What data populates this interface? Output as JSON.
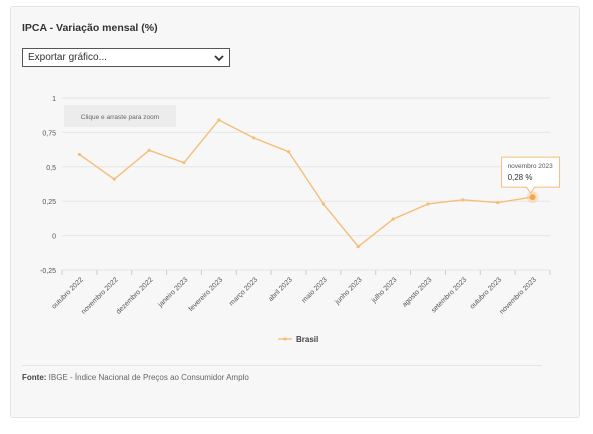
{
  "header": {
    "title": "IPCA - Variação mensal (%)"
  },
  "export": {
    "label": "Exportar gráfico..."
  },
  "zoom_hint": "Clique e arraste para zoom",
  "tooltip": {
    "month": "novembro 2023",
    "value": "0,28 %"
  },
  "source": {
    "label": "Fonte:",
    "text": "IBGE - Índice Nacional de Preços ao Consumidor Amplo"
  },
  "colors": {
    "line": "#f5be78",
    "marker": "#f0a94e",
    "grid": "#e6e6e6",
    "text": "#555555"
  },
  "chart_data": {
    "type": "line",
    "title": "IPCA - Variação mensal (%)",
    "categories": [
      "outubro 2022",
      "novembro 2022",
      "dezembro 2022",
      "janeiro 2023",
      "fevereiro 2023",
      "março 2023",
      "abril 2023",
      "maio 2023",
      "junho 2023",
      "julho 2023",
      "agosto 2023",
      "setembro 2023",
      "outubro 2023",
      "novembro 2023"
    ],
    "series": [
      {
        "name": "Brasil",
        "values": [
          0.59,
          0.41,
          0.62,
          0.53,
          0.84,
          0.71,
          0.61,
          0.23,
          -0.08,
          0.12,
          0.23,
          0.26,
          0.24,
          0.28
        ]
      }
    ],
    "y_ticks": [
      -0.25,
      0,
      0.25,
      0.5,
      0.75,
      1
    ],
    "y_tick_labels": [
      "-0,25",
      "0",
      "0,25",
      "0,5",
      "0,75",
      "1"
    ],
    "ylim": [
      -0.25,
      1
    ],
    "grid": true,
    "legend": "bottom-center",
    "xlabel": "",
    "ylabel": ""
  }
}
